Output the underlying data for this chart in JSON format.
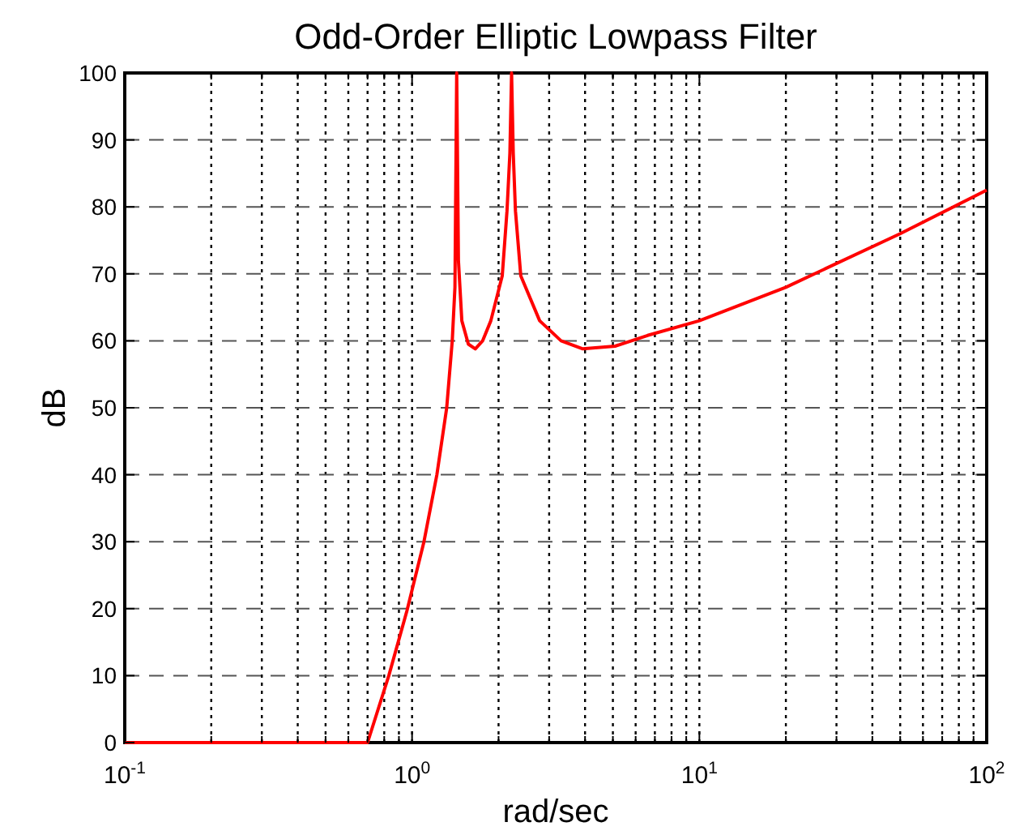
{
  "chart_data": {
    "type": "line",
    "title": "Odd-Order Elliptic Lowpass Filter",
    "xlabel": "rad/sec",
    "ylabel": "dB",
    "log": "x",
    "grid": true,
    "xlim": [
      0.1,
      100
    ],
    "ylim": [
      0,
      100
    ],
    "xticks": [
      {
        "value": 0.1,
        "label": "10$^{-1}$"
      },
      {
        "value": 0.2,
        "label": null
      },
      {
        "value": 0.3,
        "label": null
      },
      {
        "value": 0.4,
        "label": null
      },
      {
        "value": 0.5,
        "label": null
      },
      {
        "value": 0.6,
        "label": null
      },
      {
        "value": 0.7,
        "label": null
      },
      {
        "value": 0.8,
        "label": null
      },
      {
        "value": 0.9,
        "label": null
      },
      {
        "value": 1,
        "label": "10$^{0}$"
      },
      {
        "value": 2,
        "label": null
      },
      {
        "value": 3,
        "label": null
      },
      {
        "value": 4,
        "label": null
      },
      {
        "value": 5,
        "label": null
      },
      {
        "value": 6,
        "label": null
      },
      {
        "value": 7,
        "label": null
      },
      {
        "value": 8,
        "label": null
      },
      {
        "value": 9,
        "label": null
      },
      {
        "value": 10,
        "label": "10$^{1}$"
      },
      {
        "value": 20,
        "label": null
      },
      {
        "value": 30,
        "label": null
      },
      {
        "value": 40,
        "label": null
      },
      {
        "value": 50,
        "label": null
      },
      {
        "value": 60,
        "label": null
      },
      {
        "value": 70,
        "label": null
      },
      {
        "value": 80,
        "label": null
      },
      {
        "value": 90,
        "label": null
      },
      {
        "value": 100,
        "label": "10$^{2}$"
      }
    ],
    "yticks": [
      0,
      10,
      20,
      30,
      40,
      50,
      60,
      70,
      80,
      90,
      100
    ],
    "series": [
      {
        "color": "#ff0000",
        "x": [
          0.1,
          0.3,
          0.5,
          0.7,
          0.83,
          0.96,
          1.1,
          1.22,
          1.32,
          1.38,
          1.41,
          1.43,
          1.45,
          1.49,
          1.57,
          1.66,
          1.76,
          1.88,
          2.06,
          2.14,
          2.19,
          2.22,
          2.25,
          2.29,
          2.39,
          2.78,
          3.3,
          3.93,
          5.09,
          6.6,
          10,
          20,
          50,
          100
        ],
        "values": [
          0,
          0,
          0,
          0,
          10,
          19.7,
          30,
          40,
          50,
          60,
          68,
          100,
          72,
          63,
          59.5,
          58.8,
          60,
          63,
          69.7,
          79.4,
          88,
          100,
          88,
          79.4,
          69.7,
          63,
          60,
          58.8,
          59.2,
          60.8,
          63,
          68,
          76,
          82.5
        ]
      }
    ]
  }
}
